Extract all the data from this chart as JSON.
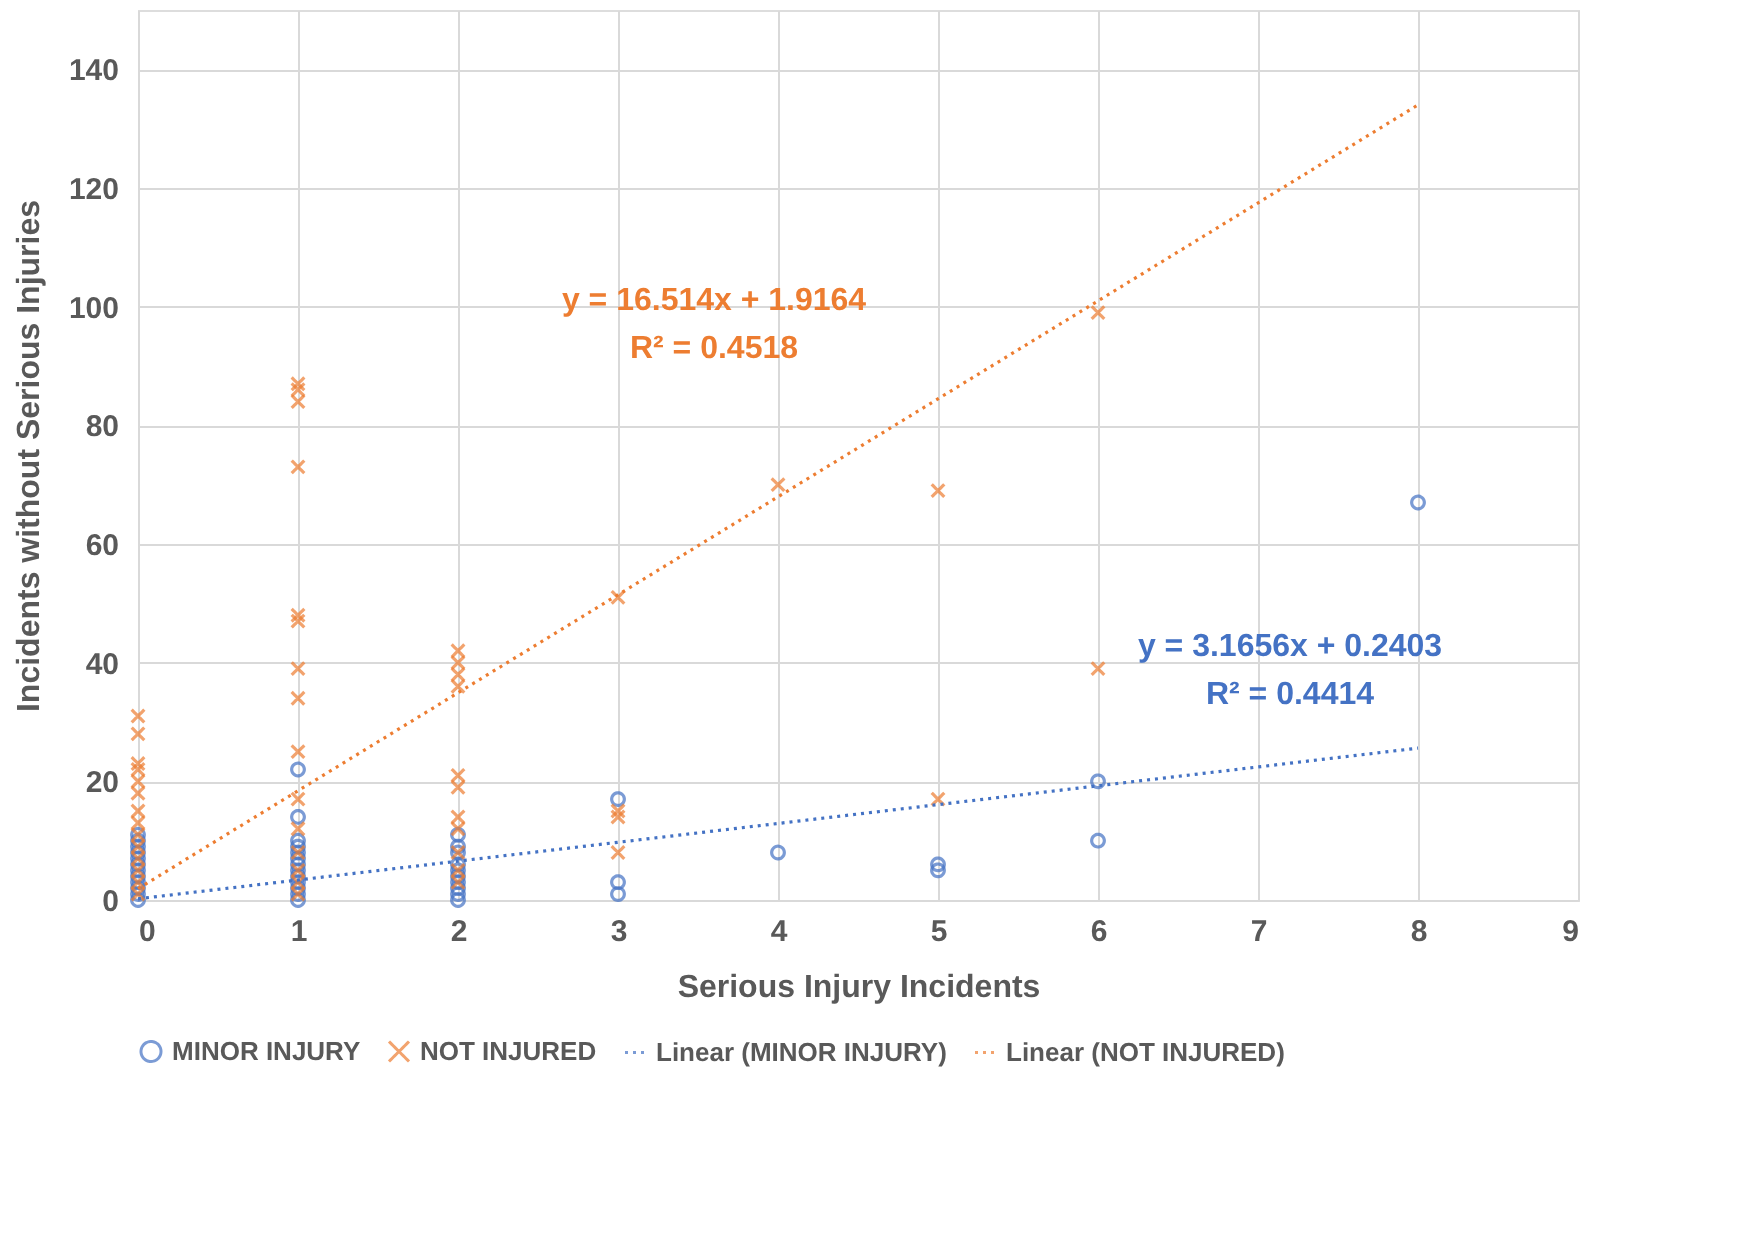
{
  "chart_data": {
    "type": "scatter",
    "xlabel": "Serious Injury Incidents",
    "ylabel": "Incidents without Serious Injuries",
    "xlim": [
      0,
      9
    ],
    "xticks": [
      0,
      1,
      2,
      3,
      4,
      5,
      6,
      7,
      8,
      9
    ],
    "ylim": [
      0,
      150
    ],
    "yticks": [
      0,
      20,
      40,
      60,
      80,
      100,
      120,
      140
    ],
    "grid": true,
    "legend": "bottom",
    "series": [
      {
        "name": "MINOR INJURY",
        "color": "#4472c4",
        "marker": "circle",
        "x": [
          0,
          0,
          0,
          0,
          0,
          0,
          0,
          0,
          0,
          0,
          0,
          0,
          1,
          1,
          1,
          1,
          1,
          1,
          1,
          1,
          1,
          1,
          1,
          1,
          1,
          2,
          2,
          2,
          2,
          2,
          2,
          2,
          2,
          2,
          2,
          3,
          3,
          3,
          4,
          5,
          5,
          6,
          6,
          8
        ],
        "values": [
          0,
          1,
          2,
          3,
          4,
          5,
          6,
          7,
          8,
          9,
          10,
          11,
          22,
          14,
          10,
          9,
          8,
          7,
          6,
          5,
          4,
          3,
          2,
          1,
          0,
          11,
          9,
          8,
          6,
          5,
          4,
          3,
          2,
          1,
          0,
          17,
          3,
          1,
          8,
          6,
          5,
          20,
          10,
          67
        ]
      },
      {
        "name": "NOT INJURED",
        "color": "#ed7d31",
        "marker": "cross",
        "x": [
          0,
          0,
          0,
          0,
          0,
          0,
          0,
          0,
          0,
          0,
          0,
          0,
          0,
          0,
          1,
          1,
          1,
          1,
          1,
          1,
          1,
          1,
          1,
          1,
          1,
          1,
          1,
          1,
          1,
          2,
          2,
          2,
          2,
          2,
          2,
          2,
          2,
          2,
          2,
          2,
          3,
          3,
          3,
          3,
          4,
          5,
          5,
          6,
          6
        ],
        "values": [
          31,
          28,
          23,
          22,
          20,
          18,
          15,
          13,
          11,
          9,
          7,
          5,
          3,
          1,
          87,
          86,
          84,
          73,
          48,
          47,
          39,
          34,
          25,
          17,
          12,
          8,
          5,
          3,
          1,
          42,
          40,
          38,
          36,
          21,
          19,
          14,
          12,
          8,
          5,
          3,
          51,
          15,
          14,
          8,
          70,
          69,
          17,
          99,
          39
        ]
      },
      {
        "name": "Linear (MINOR INJURY)",
        "type": "line",
        "line_style": "dotted",
        "color": "#4472c4",
        "x": [
          0,
          8
        ],
        "values": [
          0.2,
          25.6
        ]
      },
      {
        "name": "Linear (NOT INJURED)",
        "type": "line",
        "line_style": "dotted",
        "color": "#ed7d31",
        "x": [
          0,
          8
        ],
        "values": [
          1.9,
          134.0
        ]
      }
    ],
    "annotations": [
      "y = 3.1656x + 0.2403",
      "R² = 0.4414",
      "y = 16.514x + 1.9164",
      "R² = 0.4518"
    ]
  }
}
